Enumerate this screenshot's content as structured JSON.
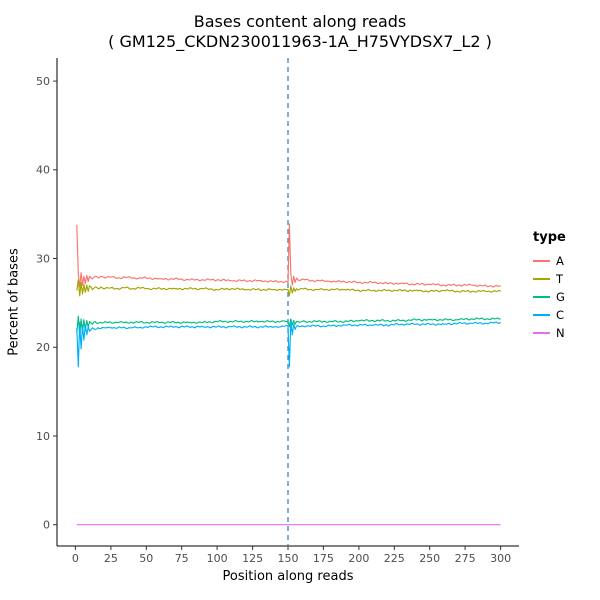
{
  "chart_data": {
    "type": "line",
    "title": "Bases content along reads",
    "subtitle": "( GM125_CKDN230011963-1A_H75VYDSX7_L2 )",
    "xlabel": "Position along reads",
    "ylabel": "Percent of bases",
    "legend_title": "type",
    "legend_position": "right",
    "grid": false,
    "xlim": [
      0,
      300
    ],
    "ylim": [
      0,
      50
    ],
    "x_ticks": [
      0,
      25,
      50,
      75,
      100,
      125,
      150,
      175,
      200,
      225,
      250,
      275,
      300
    ],
    "y_ticks": [
      0,
      10,
      20,
      30,
      40,
      50
    ],
    "vline": {
      "x": 150,
      "color": "#3d85c6",
      "style": "dashed"
    },
    "x": [
      1,
      2,
      3,
      4,
      5,
      6,
      7,
      8,
      9,
      10,
      12,
      14,
      16,
      18,
      20,
      25,
      30,
      35,
      40,
      45,
      50,
      60,
      70,
      80,
      90,
      100,
      110,
      120,
      130,
      140,
      145,
      148,
      150,
      151,
      152,
      153,
      154,
      155,
      156,
      158,
      160,
      165,
      170,
      175,
      180,
      190,
      200,
      210,
      220,
      230,
      240,
      250,
      260,
      270,
      280,
      290,
      300
    ],
    "series": [
      {
        "name": "A",
        "color": "#F8766D",
        "values": [
          33.8,
          28.2,
          26.8,
          28.4,
          27.0,
          28.0,
          27.2,
          28.1,
          27.4,
          28.0,
          27.7,
          28.0,
          27.8,
          28.0,
          27.9,
          27.9,
          27.8,
          27.9,
          27.8,
          27.8,
          27.8,
          27.7,
          27.7,
          27.6,
          27.6,
          27.6,
          27.5,
          27.5,
          27.5,
          27.4,
          27.4,
          27.4,
          27.3,
          33.9,
          28.3,
          27.0,
          28.0,
          27.3,
          27.8,
          27.5,
          27.7,
          27.5,
          27.5,
          27.5,
          27.4,
          27.4,
          27.3,
          27.3,
          27.2,
          27.2,
          27.1,
          27.1,
          27.0,
          27.0,
          27.0,
          26.9,
          26.9
        ]
      },
      {
        "name": "T",
        "color": "#A3A500",
        "values": [
          26.4,
          27.6,
          25.8,
          27.3,
          26.0,
          27.1,
          26.2,
          27.0,
          26.3,
          26.9,
          26.5,
          26.8,
          26.6,
          26.8,
          26.6,
          26.7,
          26.6,
          26.7,
          26.6,
          26.7,
          26.6,
          26.6,
          26.6,
          26.6,
          26.6,
          26.5,
          26.6,
          26.5,
          26.5,
          26.5,
          26.5,
          26.5,
          26.5,
          25.8,
          26.9,
          26.1,
          26.7,
          26.3,
          26.6,
          26.5,
          26.6,
          26.5,
          26.5,
          26.5,
          26.5,
          26.5,
          26.4,
          26.4,
          26.4,
          26.4,
          26.4,
          26.3,
          26.4,
          26.3,
          26.3,
          26.3,
          26.3
        ]
      },
      {
        "name": "G",
        "color": "#00BF7D",
        "values": [
          21.6,
          23.5,
          21.2,
          23.2,
          21.6,
          23.1,
          21.9,
          23.0,
          22.3,
          22.9,
          22.6,
          22.9,
          22.7,
          22.8,
          22.8,
          22.8,
          22.8,
          22.8,
          22.8,
          22.8,
          22.8,
          22.8,
          22.8,
          22.8,
          22.8,
          22.9,
          22.9,
          22.9,
          22.9,
          22.9,
          22.9,
          22.9,
          22.9,
          22.3,
          23.2,
          22.5,
          23.0,
          22.6,
          22.9,
          22.8,
          22.9,
          22.9,
          22.9,
          22.9,
          22.9,
          22.9,
          23.0,
          23.0,
          23.0,
          23.0,
          23.1,
          23.1,
          23.1,
          23.1,
          23.2,
          23.2,
          23.2
        ]
      },
      {
        "name": "C",
        "color": "#00B0F6",
        "values": [
          22.2,
          17.8,
          22.8,
          19.8,
          22.5,
          20.8,
          22.5,
          21.4,
          22.3,
          21.8,
          22.2,
          22.0,
          22.2,
          22.1,
          22.2,
          22.2,
          22.2,
          22.2,
          22.2,
          22.2,
          22.3,
          22.3,
          22.3,
          22.3,
          22.3,
          22.3,
          22.3,
          22.3,
          22.3,
          22.3,
          22.3,
          22.4,
          22.4,
          17.8,
          22.9,
          21.4,
          22.6,
          22.0,
          22.4,
          22.3,
          22.4,
          22.4,
          22.4,
          22.4,
          22.4,
          22.5,
          22.5,
          22.5,
          22.5,
          22.6,
          22.6,
          22.6,
          22.6,
          22.7,
          22.7,
          22.7,
          22.8
        ]
      },
      {
        "name": "N",
        "color": "#E76BF3",
        "values": [
          0,
          0,
          0,
          0,
          0,
          0,
          0,
          0,
          0,
          0,
          0,
          0,
          0,
          0,
          0,
          0,
          0,
          0,
          0,
          0,
          0,
          0,
          0,
          0,
          0,
          0,
          0,
          0,
          0,
          0,
          0,
          0,
          0,
          0,
          0,
          0,
          0,
          0,
          0,
          0,
          0,
          0,
          0,
          0,
          0,
          0,
          0,
          0,
          0,
          0,
          0,
          0,
          0,
          0,
          0,
          0,
          0
        ]
      }
    ]
  }
}
